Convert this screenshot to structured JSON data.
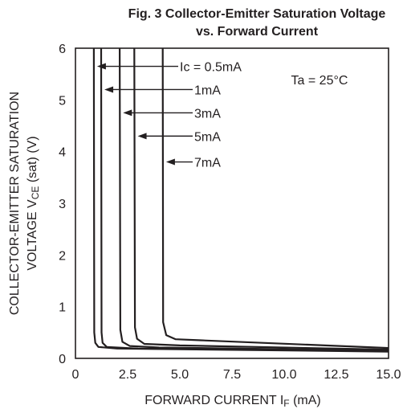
{
  "chart_data": {
    "type": "line",
    "title_line1": "Fig. 3 Collector-Emitter Saturation Voltage",
    "title_line2": "vs. Forward Current",
    "xlabel_main": "FORWARD CURRENT I",
    "xlabel_sub": "F",
    "xlabel_unit": " (mA)",
    "ylabel_line1": "COLLECTOR-EMITTER SATURATION",
    "ylabel_line2_main": "VOLTAGE V",
    "ylabel_line2_sub": "CE",
    "ylabel_line2_tail": " (sat) (V)",
    "xlim": [
      0,
      15
    ],
    "ylim": [
      0,
      6
    ],
    "x_ticks": [
      {
        "value": 0,
        "label": "0"
      },
      {
        "value": 2.5,
        "label": "2.5"
      },
      {
        "value": 5,
        "label": "5.0"
      },
      {
        "value": 7.5,
        "label": "7.5"
      },
      {
        "value": 10,
        "label": "10.0"
      },
      {
        "value": 12.5,
        "label": "12.5"
      },
      {
        "value": 15,
        "label": "15.0"
      }
    ],
    "y_ticks": [
      {
        "value": 0,
        "label": "0"
      },
      {
        "value": 1,
        "label": "1"
      },
      {
        "value": 2,
        "label": "2"
      },
      {
        "value": 3,
        "label": "3"
      },
      {
        "value": 4,
        "label": "4"
      },
      {
        "value": 5,
        "label": "5"
      },
      {
        "value": 6,
        "label": "6"
      }
    ],
    "grid": false,
    "condition": "Ta = 25°C",
    "series": [
      {
        "name": "0.5mA",
        "label": "Ic = 0.5mA",
        "label_value": 5.65,
        "points": [
          [
            0.88,
            6.0
          ],
          [
            0.9,
            0.5
          ],
          [
            0.95,
            0.3
          ],
          [
            1.1,
            0.22
          ],
          [
            2.0,
            0.19
          ],
          [
            15.0,
            0.13
          ]
        ]
      },
      {
        "name": "1mA",
        "label": "1mA",
        "label_value": 5.2,
        "points": [
          [
            1.23,
            6.0
          ],
          [
            1.25,
            0.5
          ],
          [
            1.3,
            0.3
          ],
          [
            1.5,
            0.22
          ],
          [
            3.0,
            0.19
          ],
          [
            15.0,
            0.14
          ]
        ]
      },
      {
        "name": "3mA",
        "label": "3mA",
        "label_value": 4.75,
        "points": [
          [
            2.12,
            6.0
          ],
          [
            2.15,
            0.55
          ],
          [
            2.25,
            0.32
          ],
          [
            2.6,
            0.24
          ],
          [
            4.0,
            0.21
          ],
          [
            15.0,
            0.15
          ]
        ]
      },
      {
        "name": "5mA",
        "label": "5mA",
        "label_value": 4.3,
        "points": [
          [
            2.82,
            6.0
          ],
          [
            2.85,
            0.6
          ],
          [
            2.95,
            0.38
          ],
          [
            3.3,
            0.28
          ],
          [
            5.0,
            0.25
          ],
          [
            15.0,
            0.17
          ]
        ]
      },
      {
        "name": "7mA",
        "label": "7mA",
        "label_value": 3.8,
        "points": [
          [
            4.18,
            6.0
          ],
          [
            4.2,
            0.7
          ],
          [
            4.35,
            0.45
          ],
          [
            4.8,
            0.37
          ],
          [
            6.0,
            0.35
          ],
          [
            15.0,
            0.2
          ]
        ]
      }
    ]
  }
}
